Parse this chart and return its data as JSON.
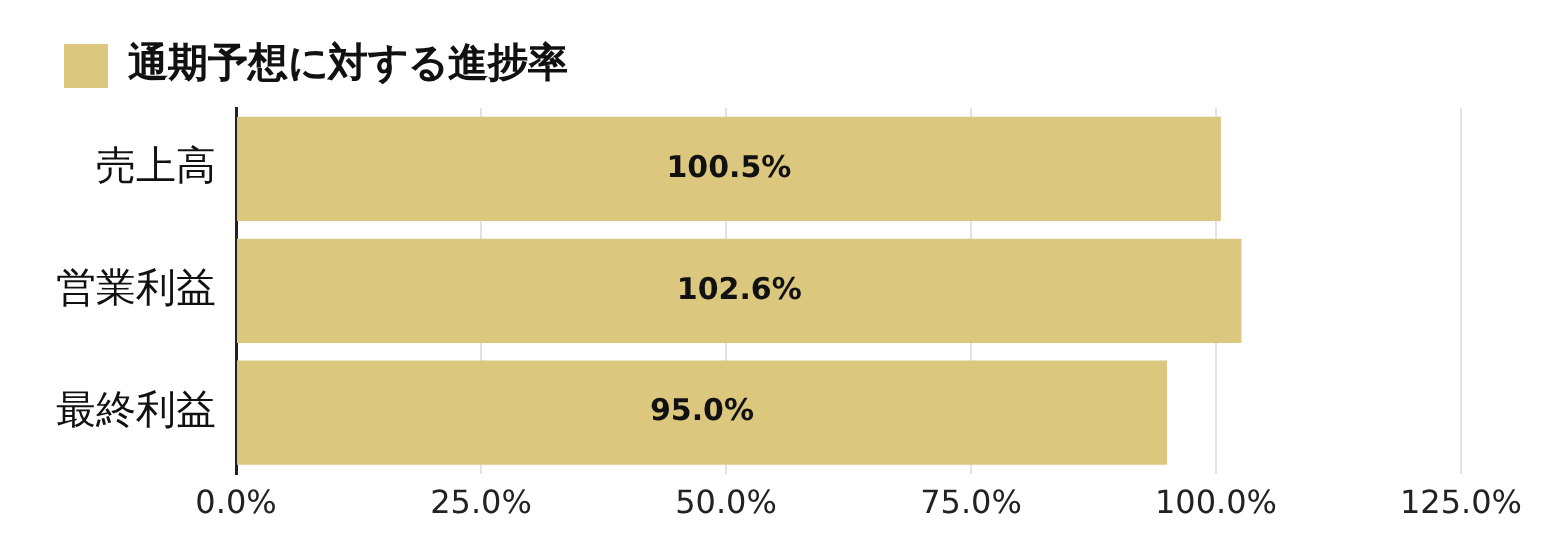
{
  "chart_data": {
    "type": "bar",
    "orientation": "horizontal",
    "categories": [
      "売上高",
      "営業利益",
      "最終利益"
    ],
    "series": [
      {
        "name": "通期予想に対する進捗率",
        "color": "#dcc77f",
        "values": [
          100.5,
          102.6,
          95.0
        ],
        "value_labels": [
          "100.5%",
          "102.6%",
          "95.0%"
        ]
      }
    ],
    "xlim": [
      0,
      125
    ],
    "xticks": [
      {
        "value": 0,
        "label": "0.0%"
      },
      {
        "value": 25,
        "label": "25.0%"
      },
      {
        "value": 50,
        "label": "50.0%"
      },
      {
        "value": 75,
        "label": "75.0%"
      },
      {
        "value": 100,
        "label": "100.0%"
      },
      {
        "value": 125,
        "label": "125.0%"
      }
    ],
    "grid": "x",
    "legend": "top left"
  }
}
